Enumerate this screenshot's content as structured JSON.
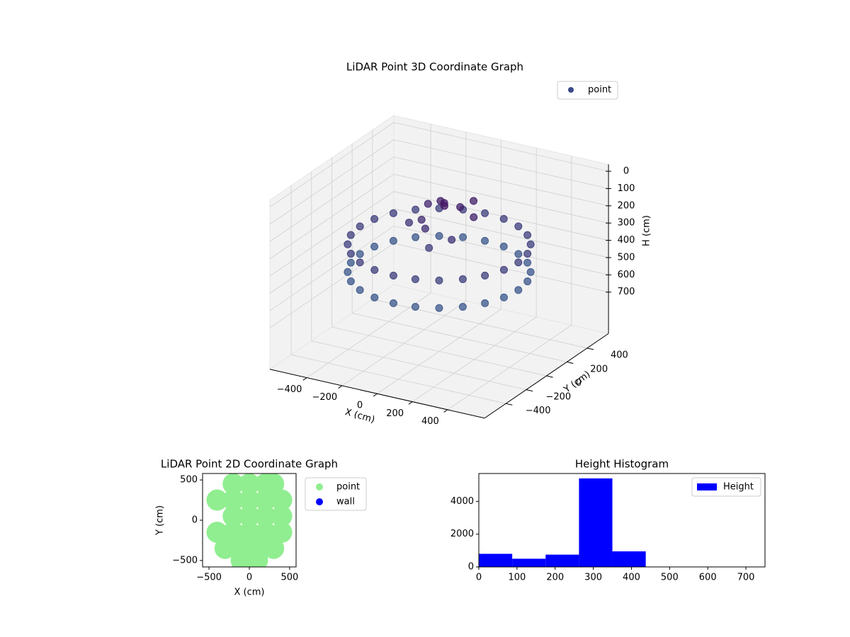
{
  "chart_data": [
    {
      "type": "scatter3d",
      "title": "LiDAR Point 3D Coordinate Graph",
      "xlabel": "X (cm)",
      "ylabel": "Y (cm)",
      "zlabel": "H (cm)",
      "legend": "upper right",
      "colormap": [
        "#440154",
        "#3b528b",
        "#21918c"
      ],
      "xlim": [
        -610,
        610
      ],
      "ylim": [
        -610,
        610
      ],
      "zlim": [
        -40,
        940
      ],
      "z_inverted": true,
      "xticks": [
        {
          "value": -400,
          "label": "−400"
        },
        {
          "value": -200,
          "label": "−200"
        },
        0,
        200,
        400
      ],
      "yticks": [
        {
          "value": -400,
          "label": "−400"
        },
        {
          "value": -200,
          "label": "−200"
        },
        0,
        200,
        400
      ],
      "zticks": [
        0,
        100,
        200,
        300,
        400,
        500,
        600,
        700
      ],
      "series": [
        {
          "name": "point",
          "color": "#3b4a8a",
          "x": [
            450,
            435,
            390,
            318,
            225,
            116,
            0,
            -116,
            -225,
            -318,
            -390,
            -435,
            -450,
            -435,
            -390,
            -318,
            -225,
            -116,
            0,
            116,
            225,
            318,
            390,
            435,
            450,
            435,
            390,
            318,
            225,
            116,
            0,
            -116,
            -225,
            -318,
            -390,
            -435,
            -450,
            -435,
            -390,
            -318,
            -225,
            -116,
            0,
            116,
            225,
            318,
            390,
            435,
            -50,
            0,
            50,
            -100,
            100,
            0,
            -150,
            150,
            -50,
            80,
            -200,
            30
          ],
          "y": [
            0,
            116,
            225,
            318,
            390,
            435,
            450,
            435,
            390,
            318,
            225,
            116,
            0,
            -116,
            -225,
            -318,
            -390,
            -435,
            -450,
            -435,
            -390,
            -318,
            -225,
            -116,
            0,
            116,
            225,
            318,
            390,
            435,
            450,
            435,
            390,
            318,
            225,
            116,
            0,
            -116,
            -225,
            -318,
            -390,
            -435,
            -450,
            -435,
            -390,
            -318,
            -225,
            -116,
            100,
            50,
            120,
            0,
            -50,
            -100,
            150,
            80,
            -50,
            200,
            50,
            0
          ],
          "z": [
            320,
            320,
            320,
            320,
            320,
            320,
            320,
            320,
            320,
            320,
            320,
            320,
            320,
            320,
            320,
            320,
            320,
            320,
            320,
            320,
            320,
            320,
            320,
            320,
            480,
            480,
            480,
            480,
            480,
            480,
            480,
            480,
            480,
            480,
            480,
            480,
            480,
            480,
            480,
            480,
            480,
            480,
            480,
            480,
            480,
            480,
            480,
            480,
            120,
            100,
            140,
            200,
            250,
            300,
            180,
            160,
            220,
            130,
            260,
            90
          ]
        }
      ]
    },
    {
      "type": "scatter",
      "title": "LiDAR Point 2D Coordinate Graph",
      "xlabel": "X (cm)",
      "ylabel": "Y (cm)",
      "legend": "outside right",
      "xlim": [
        -580,
        580
      ],
      "ylim": [
        -580,
        580
      ],
      "xticks": [
        {
          "value": -500,
          "label": "−500"
        },
        0,
        500
      ],
      "yticks": [
        {
          "value": -500,
          "label": "−500"
        },
        0,
        500
      ],
      "series": [
        {
          "name": "point",
          "color": "#90ee90",
          "x": [
            -200,
            0,
            200,
            300,
            -400,
            -200,
            0,
            200,
            400,
            -200,
            0,
            200,
            400,
            -400,
            -200,
            0,
            200,
            400,
            -300,
            -100,
            100,
            300,
            -100,
            100
          ],
          "y": [
            450,
            450,
            450,
            450,
            250,
            250,
            250,
            250,
            250,
            50,
            50,
            50,
            50,
            -150,
            -150,
            -150,
            -150,
            -150,
            -350,
            -350,
            -350,
            -350,
            -500,
            -500
          ]
        },
        {
          "name": "wall",
          "color": "#0000ff",
          "x": [],
          "y": []
        }
      ]
    },
    {
      "type": "histogram",
      "title": "Height Histogram",
      "legend": "upper right",
      "bins": [
        0,
        87.5,
        175,
        262.5,
        350,
        437.5,
        525,
        612.5,
        700
      ],
      "xlim": [
        0,
        750
      ],
      "ylim": [
        0,
        5700
      ],
      "xticks": [
        0,
        100,
        200,
        300,
        400,
        500,
        600,
        700
      ],
      "yticks": [
        0,
        2000,
        4000
      ],
      "series": [
        {
          "name": "Height",
          "color": "#0000ff",
          "values": [
            800,
            500,
            750,
            5400,
            950,
            0,
            0,
            0
          ]
        }
      ]
    }
  ]
}
